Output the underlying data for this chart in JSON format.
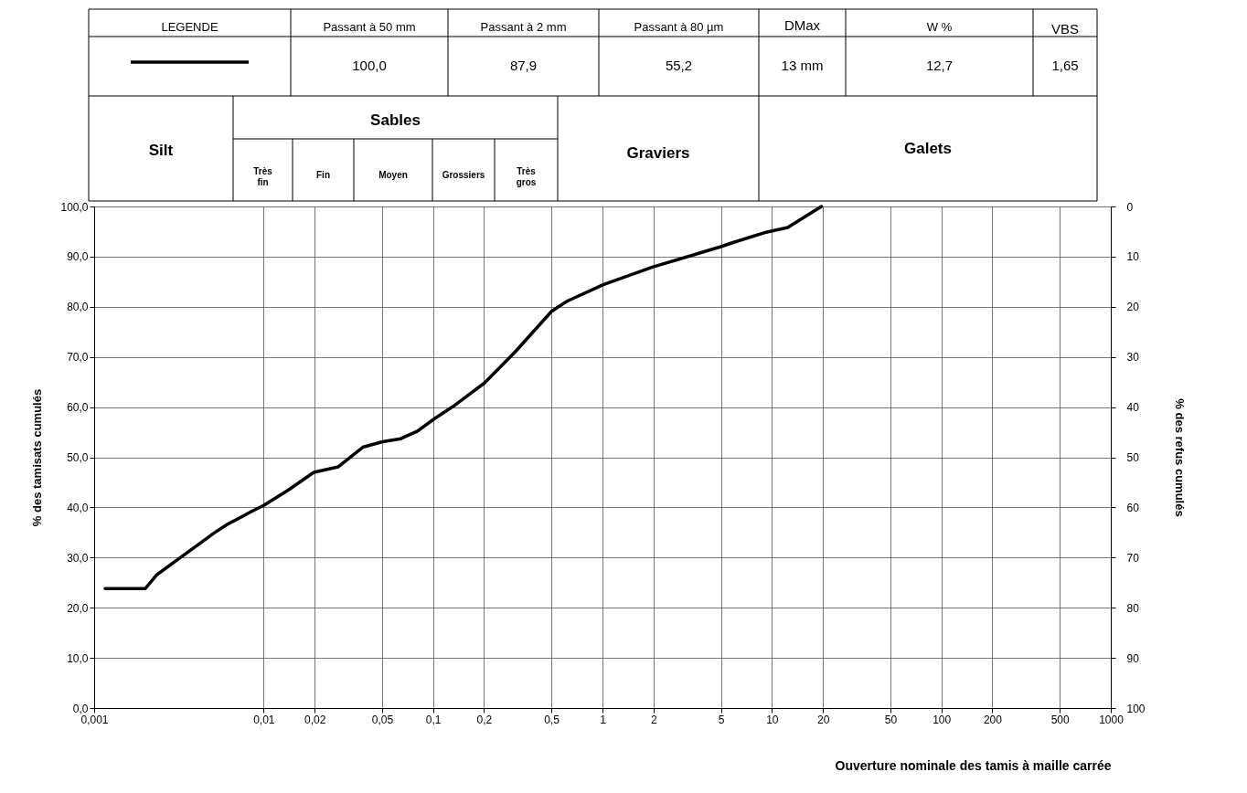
{
  "chart_data": {
    "type": "line",
    "xlabel": "Ouverture nominale des tamis à maille carrée",
    "ylabel": "% des tamisats cumulés",
    "y2label": "% des refus cumulés",
    "log": "x",
    "grid": true,
    "xlim": [
      0.001,
      1000
    ],
    "xticks": [
      {
        "value": 0.001,
        "label": "0,001"
      },
      {
        "value": 0.01,
        "label": "0,01"
      },
      {
        "value": 0.02,
        "label": "0,02"
      },
      {
        "value": 0.05,
        "label": "0,05"
      },
      {
        "value": 0.1,
        "label": "0,1"
      },
      {
        "value": 0.2,
        "label": "0,2"
      },
      {
        "value": 0.5,
        "label": "0,5"
      },
      1,
      2,
      5,
      10,
      20,
      50,
      100,
      200,
      500,
      1000
    ],
    "ylim": [
      0,
      100
    ],
    "yticks": [
      {
        "value": 0,
        "label": "0,0"
      },
      {
        "value": 10,
        "label": "10,0"
      },
      {
        "value": 20,
        "label": "20,0"
      },
      {
        "value": 30,
        "label": "30,0"
      },
      {
        "value": 40,
        "label": "40,0"
      },
      {
        "value": 50,
        "label": "50,0"
      },
      {
        "value": 60,
        "label": "60,0"
      },
      {
        "value": 70,
        "label": "70,0"
      },
      {
        "value": 80,
        "label": "80,0"
      },
      {
        "value": 90,
        "label": "90,0"
      },
      {
        "value": 100,
        "label": "100,0"
      }
    ],
    "y2lim": [
      100,
      0
    ],
    "y2ticks": [
      0,
      10,
      20,
      30,
      40,
      50,
      60,
      70,
      80,
      90,
      100
    ],
    "line_style": "solid",
    "series": [
      {
        "color": "#000000",
        "x": [
          0.00116,
          0.002,
          0.00233,
          0.00314,
          0.0042,
          0.00515,
          0.0061,
          0.0085,
          0.01,
          0.0139,
          0.0198,
          0.0276,
          0.0385,
          0.0503,
          0.0645,
          0.081,
          0.102,
          0.131,
          0.201,
          0.305,
          0.501,
          0.617,
          1.01,
          1.97,
          4.9,
          6.0,
          9.1,
          12.4,
          19.6
        ],
        "values": [
          23.8,
          23.8,
          26.5,
          29.7,
          32.8,
          35.0,
          36.6,
          39.2,
          40.4,
          43.4,
          47.0,
          48.1,
          52.0,
          53.1,
          53.7,
          55.2,
          57.7,
          60.1,
          64.8,
          71.0,
          79.1,
          81.1,
          84.4,
          87.9,
          91.9,
          92.9,
          94.8,
          95.8,
          100
        ]
      }
    ],
    "annotations": [
      "LEGENDE",
      "Passant à 50 mm",
      "Passant à 2 mm",
      "Passant à 80 µm",
      "DMax",
      "W %",
      "VBS",
      "100,0",
      "87,9",
      "55,2",
      "13 mm",
      "12,7",
      "1,65",
      "Silt",
      "Sables",
      "Très\nfin",
      "Fin",
      "Moyen",
      "Grossiers",
      "Très\ngros",
      "Graviers",
      "Galets"
    ]
  }
}
